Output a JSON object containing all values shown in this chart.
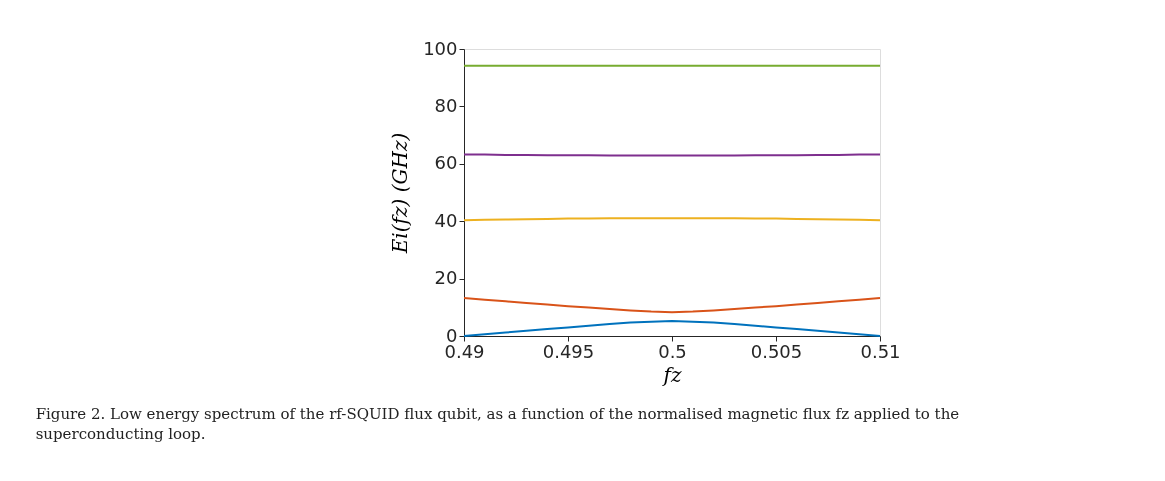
{
  "chart_data": {
    "type": "line",
    "xlabel": "fz",
    "ylabel": "Ei(fz)  (GHz)",
    "annotations": [
      "Figure 2.  Low energy spectrum of the rf-SQUID flux qubit, as a function of the normalised magnetic flux fz applied to the superconducting loop."
    ],
    "x": [
      0.49,
      0.491,
      0.492,
      0.493,
      0.494,
      0.495,
      0.496,
      0.497,
      0.498,
      0.499,
      0.5,
      0.501,
      0.502,
      0.503,
      0.504,
      0.505,
      0.506,
      0.507,
      0.508,
      0.509,
      0.51
    ],
    "series": [
      {
        "color": "#0072bd",
        "values": [
          0,
          0.6,
          1.2,
          1.8,
          2.4,
          3.0,
          3.6,
          4.2,
          4.7,
          5.0,
          5.2,
          5.0,
          4.7,
          4.2,
          3.6,
          3.0,
          2.4,
          1.8,
          1.2,
          0.6,
          0
        ]
      },
      {
        "color": "#d95319",
        "values": [
          13.2,
          12.6,
          12.1,
          11.5,
          11.0,
          10.4,
          9.9,
          9.4,
          8.9,
          8.5,
          8.3,
          8.5,
          8.9,
          9.4,
          9.9,
          10.4,
          11.0,
          11.5,
          12.1,
          12.6,
          13.2
        ]
      },
      {
        "color": "#edb120",
        "values": [
          40.3,
          40.5,
          40.6,
          40.7,
          40.8,
          40.9,
          40.9,
          41.0,
          41.0,
          41.0,
          41.0,
          41.0,
          41.0,
          41.0,
          40.9,
          40.9,
          40.8,
          40.7,
          40.6,
          40.5,
          40.3
        ]
      },
      {
        "color": "#7e2f8e",
        "values": [
          63.2,
          63.2,
          63.1,
          63.1,
          63.0,
          63.0,
          63.0,
          62.9,
          62.9,
          62.9,
          62.9,
          62.9,
          62.9,
          62.9,
          63.0,
          63.0,
          63.0,
          63.1,
          63.1,
          63.2,
          63.2
        ]
      },
      {
        "color": "#77ac30",
        "values": [
          94.2,
          94.2,
          94.2,
          94.2,
          94.2,
          94.2,
          94.2,
          94.2,
          94.2,
          94.2,
          94.2,
          94.2,
          94.2,
          94.2,
          94.2,
          94.2,
          94.2,
          94.2,
          94.2,
          94.2,
          94.2
        ]
      }
    ],
    "xlim": [
      0.49,
      0.51
    ],
    "xticks": [
      0.49,
      0.495,
      0.5,
      0.505,
      0.51
    ],
    "ylim": [
      0,
      100
    ],
    "yticks": [
      0,
      20,
      40,
      60,
      80,
      100
    ],
    "grid": false,
    "legend": false,
    "line_style": "solid",
    "marker": "none"
  }
}
